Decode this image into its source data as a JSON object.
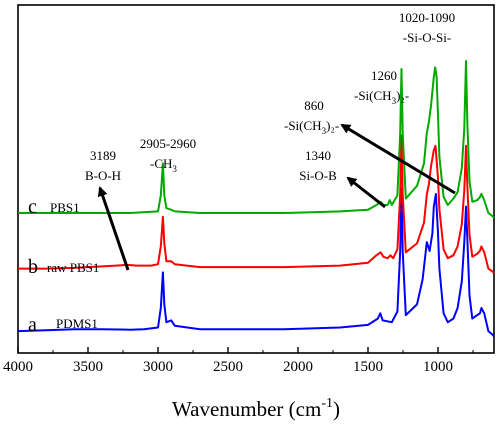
{
  "chart_data": {
    "type": "line",
    "xlabel": "Wavenumber (cm",
    "xlabel_sup": "-1",
    "xlabel_close": ")",
    "xlim": [
      4000,
      600
    ],
    "x_reversed": true,
    "x_ticks": [
      4000,
      3500,
      3000,
      2500,
      2000,
      1500,
      1000
    ],
    "ylabel": "",
    "y_ticks_shown": false,
    "grid": false,
    "series": [
      {
        "letter": "a",
        "name": "PDMS1",
        "color": "#0000ff",
        "points": [
          [
            4000,
            0.05
          ],
          [
            3800,
            0.055
          ],
          [
            3600,
            0.06
          ],
          [
            3400,
            0.06
          ],
          [
            3200,
            0.058
          ],
          [
            3100,
            0.06
          ],
          [
            3000,
            0.07
          ],
          [
            2980,
            0.18
          ],
          [
            2965,
            0.38
          ],
          [
            2955,
            0.2
          ],
          [
            2940,
            0.1
          ],
          [
            2905,
            0.11
          ],
          [
            2880,
            0.08
          ],
          [
            2700,
            0.06
          ],
          [
            2500,
            0.06
          ],
          [
            2300,
            0.06
          ],
          [
            2100,
            0.06
          ],
          [
            1900,
            0.065
          ],
          [
            1700,
            0.07
          ],
          [
            1500,
            0.085
          ],
          [
            1430,
            0.12
          ],
          [
            1412,
            0.15
          ],
          [
            1395,
            0.11
          ],
          [
            1330,
            0.1
          ],
          [
            1290,
            0.16
          ],
          [
            1270,
            0.5
          ],
          [
            1261,
            0.85
          ],
          [
            1252,
            0.5
          ],
          [
            1230,
            0.14
          ],
          [
            1150,
            0.2
          ],
          [
            1110,
            0.34
          ],
          [
            1080,
            0.55
          ],
          [
            1060,
            0.5
          ],
          [
            1040,
            0.6
          ],
          [
            1030,
            0.75
          ],
          [
            1015,
            0.82
          ],
          [
            1000,
            0.6
          ],
          [
            990,
            0.4
          ],
          [
            960,
            0.15
          ],
          [
            930,
            0.1
          ],
          [
            890,
            0.12
          ],
          [
            860,
            0.18
          ],
          [
            830,
            0.33
          ],
          [
            812,
            0.55
          ],
          [
            800,
            0.75
          ],
          [
            790,
            0.56
          ],
          [
            775,
            0.25
          ],
          [
            755,
            0.12
          ],
          [
            720,
            0.14
          ],
          [
            700,
            0.15
          ],
          [
            690,
            0.18
          ],
          [
            670,
            0.15
          ],
          [
            640,
            0.05
          ],
          [
            610,
            0.03
          ],
          [
            600,
            0.02
          ]
        ]
      },
      {
        "letter": "b",
        "name": "raw PBS1",
        "color": "#ff0000",
        "points": [
          [
            4000,
            0.05
          ],
          [
            3800,
            0.05
          ],
          [
            3600,
            0.055
          ],
          [
            3500,
            0.06
          ],
          [
            3400,
            0.065
          ],
          [
            3300,
            0.07
          ],
          [
            3220,
            0.075
          ],
          [
            3150,
            0.07
          ],
          [
            3050,
            0.07
          ],
          [
            3000,
            0.08
          ],
          [
            2980,
            0.2
          ],
          [
            2965,
            0.4
          ],
          [
            2955,
            0.22
          ],
          [
            2940,
            0.1
          ],
          [
            2905,
            0.1
          ],
          [
            2880,
            0.08
          ],
          [
            2700,
            0.06
          ],
          [
            2500,
            0.06
          ],
          [
            2300,
            0.06
          ],
          [
            2100,
            0.06
          ],
          [
            1900,
            0.065
          ],
          [
            1700,
            0.07
          ],
          [
            1500,
            0.09
          ],
          [
            1440,
            0.14
          ],
          [
            1410,
            0.16
          ],
          [
            1390,
            0.13
          ],
          [
            1360,
            0.12
          ],
          [
            1340,
            0.14
          ],
          [
            1320,
            0.12
          ],
          [
            1290,
            0.18
          ],
          [
            1270,
            0.55
          ],
          [
            1261,
            0.95
          ],
          [
            1252,
            0.55
          ],
          [
            1230,
            0.16
          ],
          [
            1150,
            0.22
          ],
          [
            1100,
            0.36
          ],
          [
            1080,
            0.55
          ],
          [
            1065,
            0.62
          ],
          [
            1050,
            0.74
          ],
          [
            1030,
            0.85
          ],
          [
            1018,
            0.88
          ],
          [
            1000,
            0.66
          ],
          [
            990,
            0.45
          ],
          [
            960,
            0.18
          ],
          [
            930,
            0.12
          ],
          [
            890,
            0.14
          ],
          [
            860,
            0.2
          ],
          [
            830,
            0.35
          ],
          [
            812,
            0.58
          ],
          [
            800,
            0.88
          ],
          [
            790,
            0.6
          ],
          [
            775,
            0.28
          ],
          [
            755,
            0.13
          ],
          [
            720,
            0.15
          ],
          [
            700,
            0.17
          ],
          [
            690,
            0.2
          ],
          [
            670,
            0.16
          ],
          [
            640,
            0.05
          ],
          [
            610,
            0.03
          ],
          [
            600,
            0.02
          ]
        ]
      },
      {
        "letter": "c",
        "name": "PBS1",
        "color": "#00aa00",
        "points": [
          [
            4000,
            0.05
          ],
          [
            3800,
            0.05
          ],
          [
            3600,
            0.05
          ],
          [
            3400,
            0.05
          ],
          [
            3200,
            0.05
          ],
          [
            3000,
            0.06
          ],
          [
            2980,
            0.16
          ],
          [
            2965,
            0.36
          ],
          [
            2955,
            0.16
          ],
          [
            2940,
            0.08
          ],
          [
            2905,
            0.07
          ],
          [
            2880,
            0.06
          ],
          [
            2700,
            0.05
          ],
          [
            2500,
            0.05
          ],
          [
            2300,
            0.05
          ],
          [
            2100,
            0.05
          ],
          [
            1900,
            0.055
          ],
          [
            1700,
            0.06
          ],
          [
            1500,
            0.07
          ],
          [
            1440,
            0.1
          ],
          [
            1410,
            0.12
          ],
          [
            1390,
            0.1
          ],
          [
            1360,
            0.1
          ],
          [
            1345,
            0.13
          ],
          [
            1330,
            0.1
          ],
          [
            1290,
            0.16
          ],
          [
            1270,
            0.55
          ],
          [
            1261,
            0.95
          ],
          [
            1252,
            0.55
          ],
          [
            1230,
            0.14
          ],
          [
            1150,
            0.22
          ],
          [
            1100,
            0.36
          ],
          [
            1080,
            0.55
          ],
          [
            1065,
            0.62
          ],
          [
            1050,
            0.72
          ],
          [
            1030,
            0.9
          ],
          [
            1020,
            0.96
          ],
          [
            1010,
            0.9
          ],
          [
            1000,
            0.66
          ],
          [
            990,
            0.4
          ],
          [
            960,
            0.15
          ],
          [
            930,
            0.1
          ],
          [
            890,
            0.14
          ],
          [
            860,
            0.18
          ],
          [
            830,
            0.33
          ],
          [
            812,
            0.58
          ],
          [
            800,
            1.0
          ],
          [
            790,
            0.6
          ],
          [
            775,
            0.25
          ],
          [
            755,
            0.12
          ],
          [
            720,
            0.13
          ],
          [
            700,
            0.15
          ],
          [
            690,
            0.17
          ],
          [
            670,
            0.13
          ],
          [
            640,
            0.05
          ],
          [
            610,
            0.03
          ],
          [
            600,
            0.02
          ]
        ]
      }
    ],
    "annotations": [
      {
        "id": "ann-3189",
        "line1": "3189",
        "line2": "B-O-H",
        "line2_sub": "",
        "line2_tail": ""
      },
      {
        "id": "ann-2905",
        "line1": "2905-2960",
        "line2": "-CH",
        "line2_sub": "3",
        "line2_tail": ""
      },
      {
        "id": "ann-1340",
        "line1": "1340",
        "line2": "Si-O-B",
        "line2_sub": "",
        "line2_tail": ""
      },
      {
        "id": "ann-860",
        "line1": "860",
        "line2": "-Si(CH",
        "line2_sub": "3",
        "line2_tail": ")₂-"
      },
      {
        "id": "ann-1260",
        "line1": "1260",
        "line2": "-Si(CH",
        "line2_sub": "3",
        "line2_tail": ")₂-"
      },
      {
        "id": "ann-1020",
        "line1": "1020-1090",
        "line2": "-Si-O-Si-",
        "line2_sub": "",
        "line2_tail": ""
      }
    ]
  }
}
